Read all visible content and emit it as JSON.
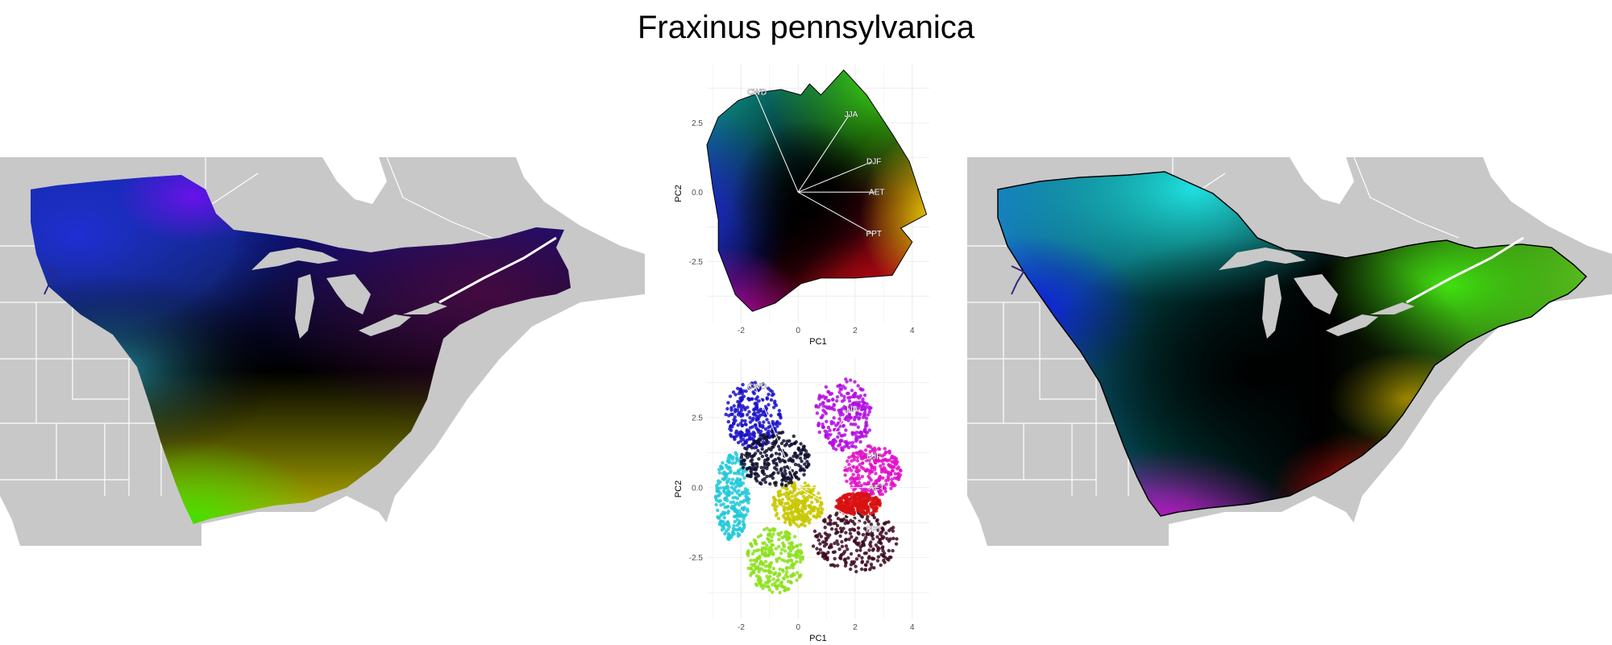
{
  "figure": {
    "title": "Fraxinus pennsylvanica"
  },
  "colors": {
    "land": "#c8c8c8",
    "border": "#ffffff",
    "grid": "#ebebeb",
    "outline": "#000000"
  },
  "chart_data": [
    {
      "type": "scatter",
      "title": "",
      "xlabel": "PC1",
      "ylabel": "PC2",
      "xlim": [
        -3.2,
        4.6
      ],
      "ylim": [
        -4.7,
        4.6
      ],
      "xticks": [
        -2,
        0,
        2,
        4
      ],
      "yticks": [
        2.5,
        0.0,
        -2.5
      ],
      "tick_labels_x": [
        "-2",
        "0",
        "2",
        "4"
      ],
      "tick_labels_y": [
        "2.5",
        "0.0",
        "-2.5"
      ],
      "grid": true,
      "hull": [
        [
          -1.3,
          3.6
        ],
        [
          -0.6,
          3.7
        ],
        [
          0.1,
          3.5
        ],
        [
          0.4,
          3.9
        ],
        [
          0.8,
          3.5
        ],
        [
          1.6,
          4.4
        ],
        [
          2.4,
          3.5
        ],
        [
          3.3,
          2.1
        ],
        [
          3.9,
          1.1
        ],
        [
          4.5,
          -0.8
        ],
        [
          3.6,
          -1.3
        ],
        [
          4.0,
          -1.8
        ],
        [
          3.3,
          -3.0
        ],
        [
          2.0,
          -3.1
        ],
        [
          0.8,
          -3.1
        ],
        [
          0.1,
          -3.3
        ],
        [
          -0.8,
          -4.0
        ],
        [
          -1.6,
          -4.3
        ],
        [
          -2.2,
          -3.7
        ],
        [
          -2.8,
          -2.1
        ],
        [
          -2.8,
          -1.0
        ],
        [
          -3.0,
          0.2
        ],
        [
          -3.2,
          1.7
        ],
        [
          -2.8,
          2.7
        ],
        [
          -2.1,
          3.3
        ]
      ],
      "vectors": [
        {
          "label": "CWD",
          "x": -1.5,
          "y": 3.6
        },
        {
          "label": "JJA",
          "x": 1.8,
          "y": 2.8
        },
        {
          "label": "DJF",
          "x": 2.6,
          "y": 1.1
        },
        {
          "label": "AET",
          "x": 2.7,
          "y": 0.0
        },
        {
          "label": "PPT",
          "x": 2.6,
          "y": -1.5
        }
      ]
    },
    {
      "type": "scatter",
      "title": "",
      "xlabel": "PC1",
      "ylabel": "PC2",
      "xlim": [
        -3.2,
        4.6
      ],
      "ylim": [
        -4.7,
        4.6
      ],
      "xticks": [
        -2,
        0,
        2,
        4
      ],
      "yticks": [
        2.5,
        0.0,
        -2.5
      ],
      "tick_labels_x": [
        "-2",
        "0",
        "2",
        "4"
      ],
      "tick_labels_y": [
        "2.5",
        "0.0",
        "-2.5"
      ],
      "grid": true,
      "clusters": [
        {
          "color": "#1a10c8",
          "cx": -1.6,
          "cy": 2.6,
          "rx": 1.0,
          "ry": 1.2
        },
        {
          "color": "#b40ee0",
          "cx": 1.6,
          "cy": 2.6,
          "rx": 1.0,
          "ry": 1.3
        },
        {
          "color": "#e010c8",
          "cx": 2.6,
          "cy": 0.6,
          "rx": 1.0,
          "ry": 0.9
        },
        {
          "color": "#22c8d8",
          "cx": -2.3,
          "cy": -0.3,
          "rx": 0.6,
          "ry": 1.6
        },
        {
          "color": "#8ce01a",
          "cx": -0.8,
          "cy": -2.6,
          "rx": 1.0,
          "ry": 1.2
        },
        {
          "color": "#c8c800",
          "cx": 0.0,
          "cy": -0.6,
          "rx": 0.9,
          "ry": 0.8
        },
        {
          "color": "#3c0a20",
          "cx": 2.0,
          "cy": -1.9,
          "rx": 1.5,
          "ry": 1.1
        },
        {
          "color": "#d81010",
          "cx": 2.1,
          "cy": -0.6,
          "rx": 0.8,
          "ry": 0.4
        },
        {
          "color": "#101030",
          "cx": -0.8,
          "cy": 1.0,
          "rx": 1.2,
          "ry": 1.0
        }
      ],
      "vectors": [
        {
          "label": "CWD",
          "x": -1.5,
          "y": 3.6
        },
        {
          "label": "JJA",
          "x": 1.8,
          "y": 2.8
        },
        {
          "label": "DJF",
          "x": 2.6,
          "y": 1.1
        },
        {
          "label": "AET",
          "x": 2.7,
          "y": 0.0
        },
        {
          "label": "PPT",
          "x": 2.6,
          "y": -1.5
        }
      ]
    }
  ]
}
